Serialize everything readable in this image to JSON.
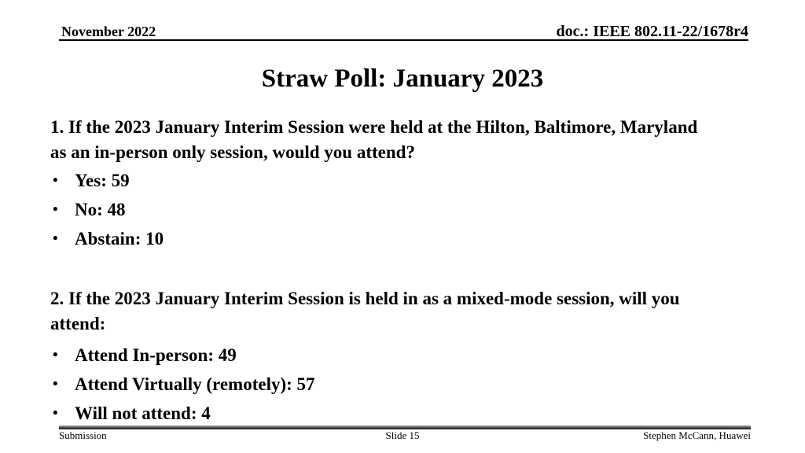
{
  "header": {
    "date": "November 2022",
    "doc_id": "doc.: IEEE 802.11-22/1678r4"
  },
  "title": "Straw Poll: January 2023",
  "questions": [
    {
      "lines": [
        "1. If the 2023 January Interim Session were held at the Hilton, Baltimore, Maryland",
        "as an in-person only session, would you attend?"
      ],
      "bullets": [
        "Yes: 59",
        "No: 48",
        "Abstain: 10"
      ]
    },
    {
      "lines": [
        "2. If the 2023 January Interim Session is held in as a mixed-mode session, will you",
        "attend:"
      ],
      "bullets": [
        "Attend In-person: 49",
        "Attend Virtually (remotely): 57",
        "Will not attend: 4"
      ]
    }
  ],
  "footer": {
    "left": "Submission",
    "center": "Slide 15",
    "right": "Stephen McCann, Huawei"
  },
  "bullet_glyph": "•",
  "colors": {
    "text": "#000000",
    "background": "#ffffff",
    "header_rule": "#000000",
    "footer_bar_light": "#b0b0b0",
    "footer_bar_dark": "#111111"
  }
}
